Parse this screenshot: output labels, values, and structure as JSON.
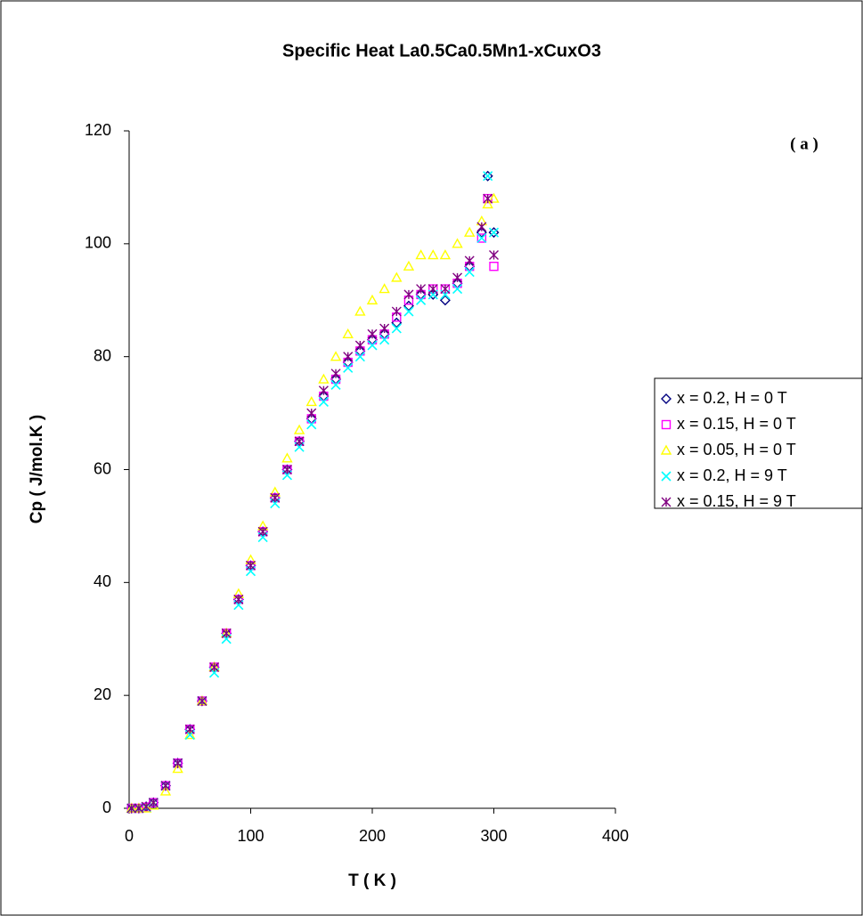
{
  "chart_data": {
    "type": "scatter",
    "title": "Specific Heat La0.5Ca0.5Mn1-xCuxO3",
    "annotation": "( a )",
    "x_label": "T ( K )",
    "y_label": "Cp ( J/mol.K )",
    "xlim": [
      0,
      400
    ],
    "xticks": [
      0,
      100,
      200,
      300,
      400
    ],
    "ylim": [
      0,
      120
    ],
    "yticks": [
      0,
      20,
      40,
      60,
      80,
      100,
      120
    ],
    "grid": false,
    "legend": "right",
    "x": [
      2,
      8,
      14,
      20,
      30,
      40,
      50,
      60,
      70,
      80,
      90,
      100,
      110,
      120,
      130,
      140,
      150,
      160,
      170,
      180,
      190,
      200,
      210,
      220,
      230,
      240,
      250,
      260,
      270,
      280,
      290,
      295,
      300
    ],
    "series": [
      {
        "name": "x = 0.2, H = 0 T",
        "color": "#000080",
        "marker": "diamond",
        "values": [
          0,
          0,
          0.3,
          1,
          4,
          8,
          14,
          19,
          25,
          31,
          37,
          43,
          49,
          55,
          60,
          65,
          69,
          73,
          76,
          79,
          81,
          83,
          84,
          86,
          89,
          91,
          91,
          90,
          93,
          96,
          102,
          112,
          102
        ]
      },
      {
        "name": "x = 0.15, H = 0 T",
        "color": "#ff00ff",
        "marker": "square",
        "values": [
          0,
          0,
          0.2,
          1,
          4,
          8,
          14,
          19,
          25,
          31,
          37,
          43,
          49,
          55,
          60,
          65,
          69,
          73,
          76,
          79,
          81,
          83,
          84,
          87,
          90,
          91,
          92,
          92,
          93,
          96,
          101,
          108,
          96
        ]
      },
      {
        "name": "x = 0.05, H = 0 T",
        "color": "#ffff00",
        "marker": "triangle",
        "values": [
          0,
          0,
          0,
          0.5,
          3,
          7,
          13,
          19,
          25,
          31,
          38,
          44,
          50,
          56,
          62,
          67,
          72,
          76,
          80,
          84,
          88,
          90,
          92,
          94,
          96,
          98,
          98,
          98,
          100,
          102,
          104,
          107,
          108
        ]
      },
      {
        "name": "x = 0.2, H = 9 T",
        "color": "#00ffff",
        "marker": "x",
        "values": [
          0,
          0,
          0.2,
          1,
          4,
          8,
          13,
          19,
          24,
          30,
          36,
          42,
          48,
          54,
          59,
          64,
          68,
          72,
          75,
          78,
          80,
          82,
          83,
          85,
          88,
          90,
          91,
          91,
          92,
          95,
          101,
          112,
          102
        ]
      },
      {
        "name": "x = 0.15, H = 9 T",
        "color": "#800080",
        "marker": "asterisk",
        "values": [
          0,
          0,
          0.3,
          1,
          4,
          8,
          14,
          19,
          25,
          31,
          37,
          43,
          49,
          55,
          60,
          65,
          70,
          74,
          77,
          80,
          82,
          84,
          85,
          88,
          91,
          92,
          92,
          92,
          94,
          97,
          103,
          108,
          98
        ]
      }
    ]
  }
}
